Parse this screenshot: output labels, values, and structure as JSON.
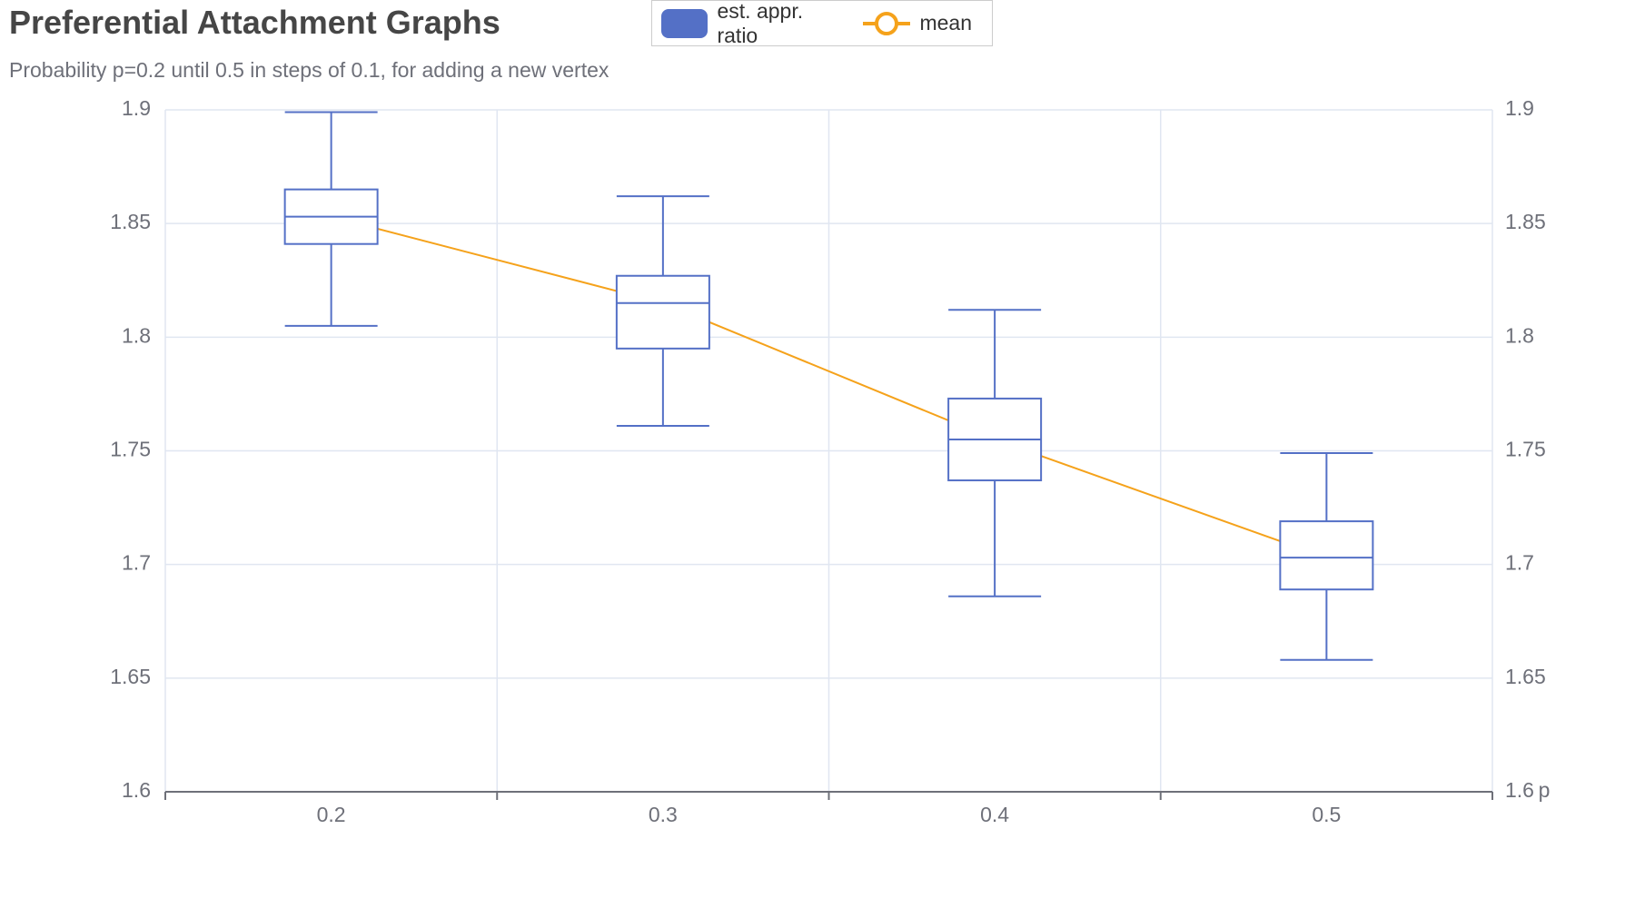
{
  "chart_data": {
    "type": "boxplot",
    "title": "Preferential Attachment Graphs",
    "subtitle": "Probability p=0.2 until 0.5 in steps of 0.1, for adding a new vertex",
    "xlabel": "p",
    "ylabel": "",
    "categories": [
      "0.2",
      "0.3",
      "0.4",
      "0.5"
    ],
    "ylim": [
      1.6,
      1.9
    ],
    "y_ticks": [
      "1.6",
      "1.65",
      "1.7",
      "1.75",
      "1.8",
      "1.85",
      "1.9"
    ],
    "grid": true,
    "legend_position": "top-center",
    "series": [
      {
        "name": "est. appr. ratio",
        "type": "boxplot",
        "color": "#5470c6",
        "boxes": [
          {
            "min": 1.805,
            "q1": 1.841,
            "median": 1.853,
            "q3": 1.865,
            "max": 1.899
          },
          {
            "min": 1.761,
            "q1": 1.795,
            "median": 1.815,
            "q3": 1.827,
            "max": 1.862
          },
          {
            "min": 1.686,
            "q1": 1.737,
            "median": 1.755,
            "q3": 1.773,
            "max": 1.812
          },
          {
            "min": 1.658,
            "q1": 1.689,
            "median": 1.703,
            "q3": 1.719,
            "max": 1.749
          }
        ]
      },
      {
        "name": "mean",
        "type": "line",
        "color": "#f5a21b",
        "values": [
          1.853,
          1.815,
          1.755,
          1.703
        ]
      }
    ]
  },
  "colors": {
    "box": "#5470c6",
    "mean_line": "#f5a21b",
    "grid": "#e0e6f1",
    "axis": "#6e7079",
    "title": "#464646"
  }
}
